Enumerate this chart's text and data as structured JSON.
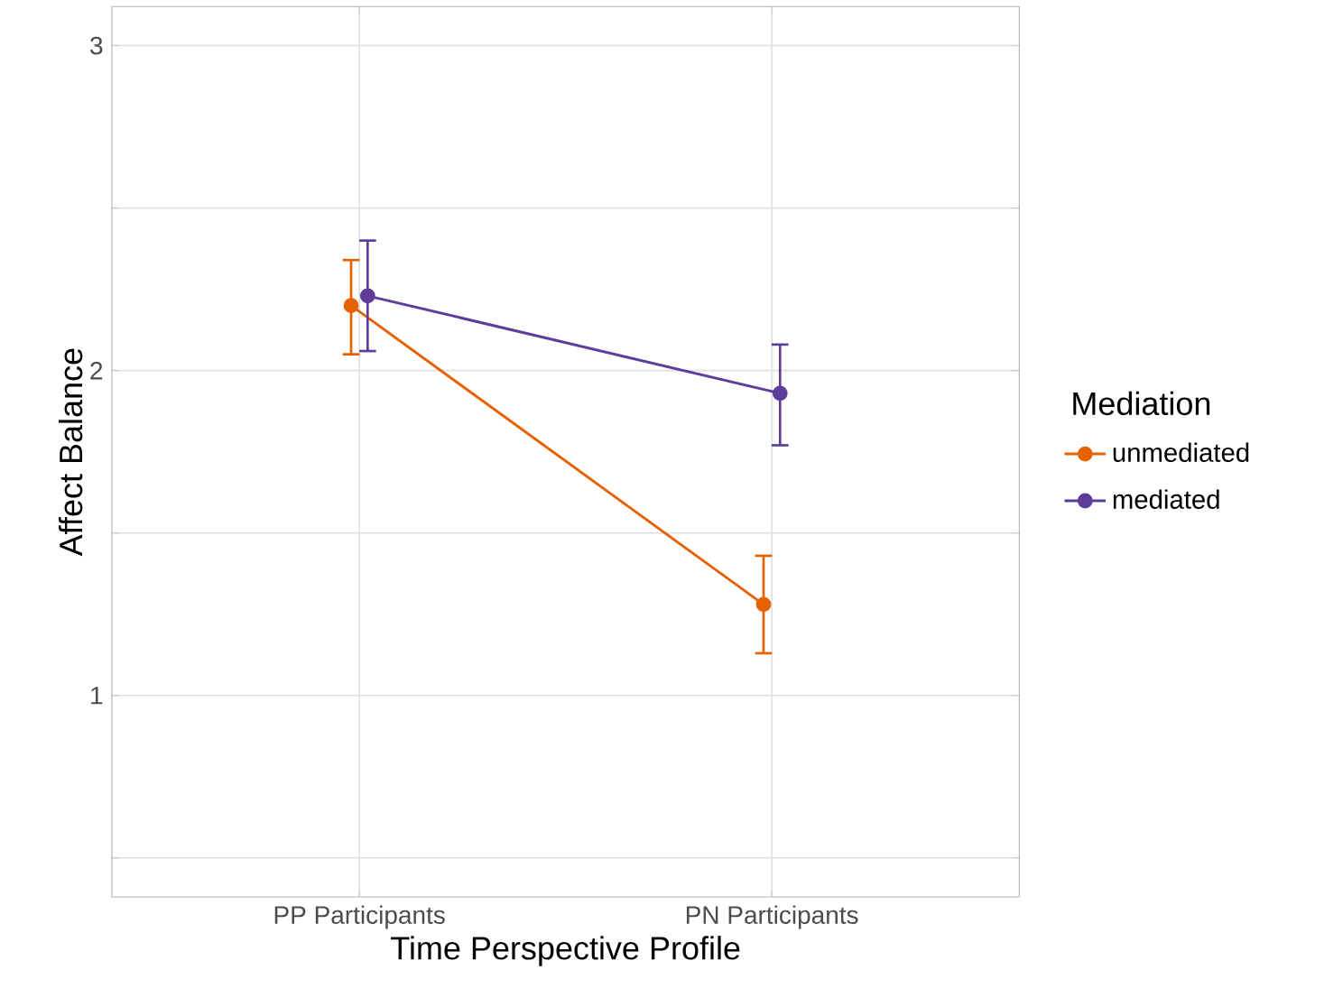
{
  "chart_data": {
    "type": "line",
    "xlabel": "Time Perspective Profile",
    "ylabel": "Affect Balance",
    "legend_title": "Mediation",
    "categories": [
      "PP Participants",
      "PN Participants"
    ],
    "series": [
      {
        "name": "unmediated",
        "color": "#e66101",
        "values": [
          2.2,
          1.28
        ],
        "errors": [
          [
            2.05,
            2.34
          ],
          [
            1.13,
            1.43
          ]
        ]
      },
      {
        "name": "mediated",
        "color": "#5e3c99",
        "values": [
          2.23,
          1.93
        ],
        "errors": [
          [
            2.06,
            2.4
          ],
          [
            1.77,
            2.08
          ]
        ]
      }
    ],
    "ylim": [
      0.38,
      3.12
    ],
    "yticks": [
      {
        "value": 0.5,
        "label": null
      },
      1,
      {
        "value": 1.5,
        "label": null
      },
      2,
      {
        "value": 2.5,
        "label": null
      },
      3
    ],
    "grid": true,
    "legend": "right",
    "marker": "circle",
    "line_style": "solid"
  }
}
